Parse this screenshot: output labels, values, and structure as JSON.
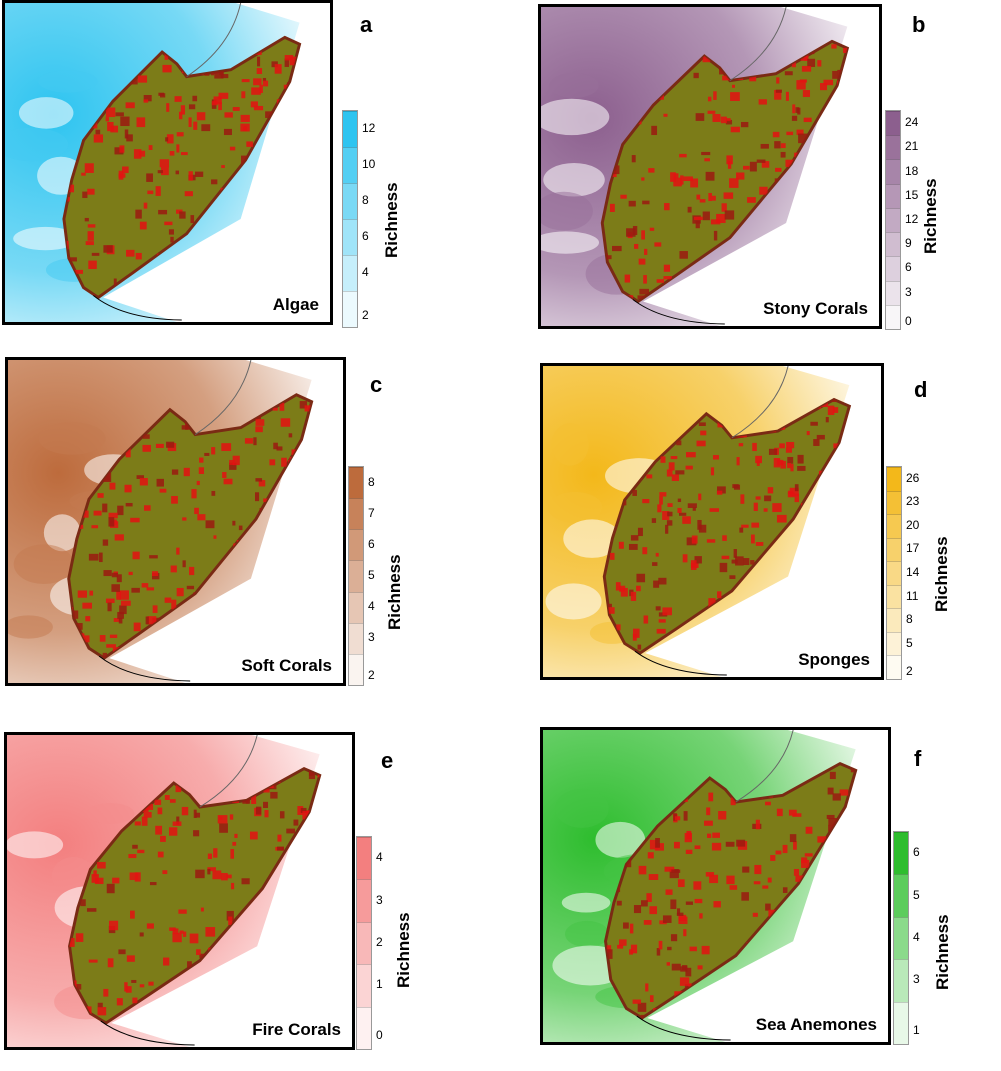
{
  "legend_title": "Richness",
  "panels": [
    {
      "letter": "a",
      "label": "Algae",
      "ticks": [
        "12",
        "10",
        "8",
        "6",
        "4",
        "2"
      ],
      "color": "#2ec4f0",
      "light": "#d9f4fd"
    },
    {
      "letter": "b",
      "label": "Stony Corals",
      "ticks": [
        "24",
        "21",
        "18",
        "15",
        "12",
        "9",
        "6",
        "3",
        "0"
      ],
      "color": "#8c5f8e",
      "light": "#ece4ee"
    },
    {
      "letter": "c",
      "label": "Soft Corals",
      "ticks": [
        "8",
        "7",
        "6",
        "5",
        "4",
        "3",
        "2"
      ],
      "color": "#bd6b3c",
      "light": "#f1e2d8"
    },
    {
      "letter": "d",
      "label": "Sponges",
      "ticks": [
        "26",
        "23",
        "20",
        "17",
        "14",
        "11",
        "8",
        "5",
        "2"
      ],
      "color": "#f3b81a",
      "light": "#fdf3d6"
    },
    {
      "letter": "e",
      "label": "Fire Corals",
      "ticks": [
        "4",
        "3",
        "2",
        "1",
        "0"
      ],
      "color": "#f37f7f",
      "light": "#fde4e4"
    },
    {
      "letter": "f",
      "label": "Sea Anemones",
      "ticks": [
        "6",
        "5",
        "4",
        "3",
        "1"
      ],
      "color": "#2ebd2e",
      "light": "#dcf3dc"
    }
  ],
  "colors": {
    "land_base": "#7c7c18",
    "land_red": "#e41212",
    "land_edge": "#7a2a14"
  }
}
